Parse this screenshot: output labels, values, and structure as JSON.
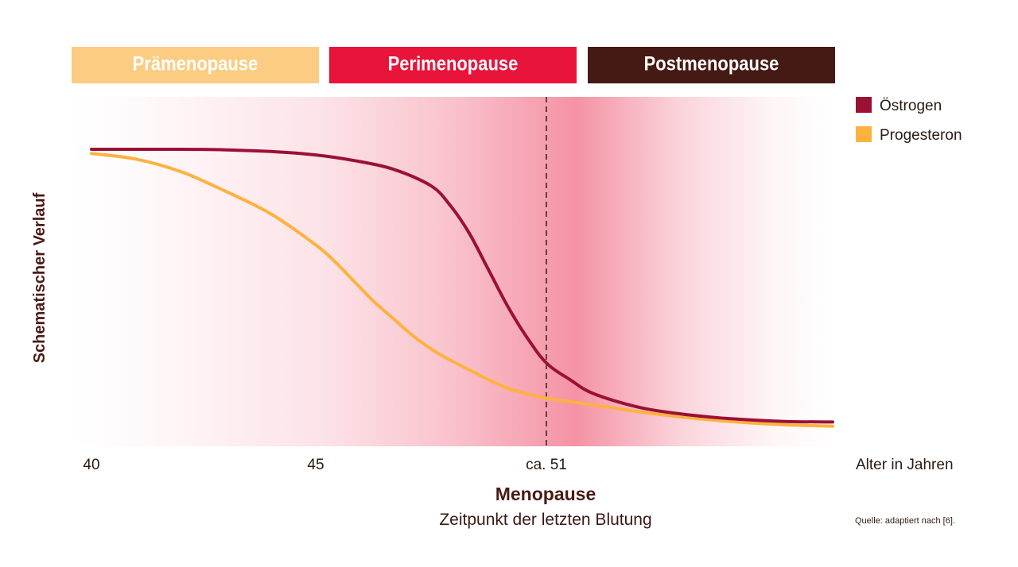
{
  "phases": [
    {
      "label": "Prämenopause",
      "color": "#fbcc82",
      "text_color": "#ffffff"
    },
    {
      "label": "Perimenopause",
      "color": "#e8143a",
      "text_color": "#ffffff"
    },
    {
      "label": "Postmenopause",
      "color": "#461a14",
      "text_color": "#ffffff"
    }
  ],
  "y_axis_label": "Schematischer Verlauf",
  "x_axis_label": "Alter in Jahren",
  "menopause_marker": {
    "title": "Menopause",
    "subtitle": "Zeitpunkt der letzten Blutung"
  },
  "source": "Quelle: adaptiert nach [6].",
  "chart_data": {
    "type": "line",
    "x_tick_labels": [
      {
        "value": 40,
        "label": "40"
      },
      {
        "value": 45,
        "label": "45"
      },
      {
        "value": 51,
        "label": "ca. 51"
      }
    ],
    "xlim": [
      40,
      57
    ],
    "ylim": [
      0,
      1
    ],
    "grid": false,
    "legend_position": "right",
    "menopause_x": 51,
    "series": [
      {
        "name": "Östrogen",
        "color": "#9b1035",
        "x": [
          40,
          42,
          43,
          44,
          45,
          46,
          47,
          48,
          48.5,
          49,
          49.5,
          50,
          50.5,
          51,
          51.5,
          52,
          53,
          54,
          55,
          56,
          57
        ],
        "y": [
          1.0,
          1.0,
          0.998,
          0.992,
          0.98,
          0.96,
          0.93,
          0.87,
          0.8,
          0.7,
          0.57,
          0.44,
          0.33,
          0.24,
          0.18,
          0.13,
          0.08,
          0.055,
          0.04,
          0.032,
          0.03
        ]
      },
      {
        "name": "Progesteron",
        "color": "#fdb23f",
        "x": [
          40,
          41,
          42,
          43,
          44,
          45,
          45.5,
          46,
          46.5,
          47,
          47.5,
          48,
          48.5,
          49,
          49.5,
          50,
          50.5,
          51,
          52,
          53,
          54,
          55,
          56,
          57
        ],
        "y": [
          0.985,
          0.965,
          0.92,
          0.85,
          0.77,
          0.66,
          0.6,
          0.53,
          0.46,
          0.4,
          0.34,
          0.29,
          0.25,
          0.215,
          0.18,
          0.15,
          0.13,
          0.115,
          0.09,
          0.065,
          0.045,
          0.03,
          0.02,
          0.015
        ]
      }
    ]
  }
}
